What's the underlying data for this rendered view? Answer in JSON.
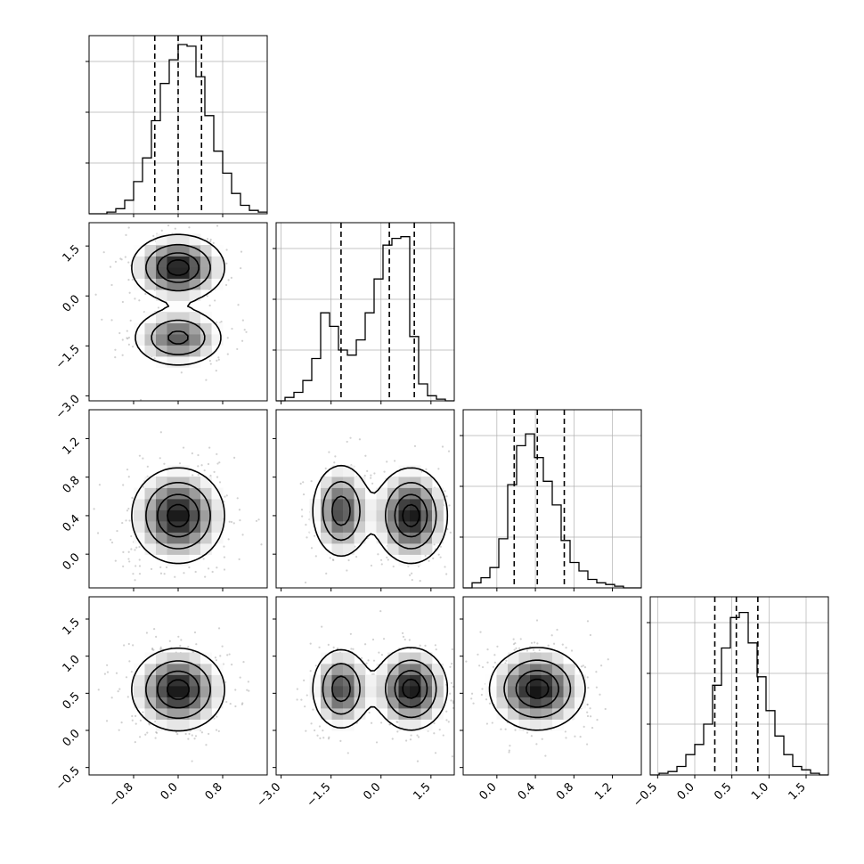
{
  "chart_data": {
    "type": "corner",
    "title": "",
    "variables": [
      {
        "key": "p0",
        "range": [
          -1.6,
          1.6
        ],
        "ticks": [
          -0.8,
          0.0,
          0.8
        ],
        "tick_labels": [
          "−0.8",
          "0.0",
          "0.8"
        ],
        "hist_x_ticks": [],
        "quantiles": [
          -0.42,
          0.0,
          0.42
        ],
        "hist": {
          "edges_start": -1.6,
          "bin_width": 0.16,
          "counts": [
            0.0,
            0.0,
            0.01,
            0.03,
            0.08,
            0.19,
            0.33,
            0.55,
            0.77,
            0.91,
            1.0,
            0.99,
            0.81,
            0.58,
            0.37,
            0.24,
            0.12,
            0.05,
            0.02,
            0.01
          ]
        },
        "hist_yticks": [
          0.3,
          0.6,
          0.9
        ]
      },
      {
        "key": "p1",
        "range": [
          -3.15,
          2.2
        ],
        "ticks": [
          -3.0,
          -1.5,
          0.0,
          1.5
        ],
        "tick_labels": [
          "−3.0",
          "−1.5",
          "0.0",
          "1.5"
        ],
        "quantiles": [
          -1.2,
          0.25,
          1.0
        ],
        "hist": {
          "edges_start": -3.15,
          "bin_width": 0.2675,
          "counts": [
            0.0,
            0.02,
            0.05,
            0.12,
            0.25,
            0.52,
            0.44,
            0.3,
            0.27,
            0.36,
            0.52,
            0.72,
            0.92,
            0.96,
            0.97,
            0.38,
            0.1,
            0.03,
            0.01,
            0.0
          ]
        },
        "hist_yticks": [
          0.3,
          0.6,
          0.9
        ]
      },
      {
        "key": "p2",
        "range": [
          -0.35,
          1.5
        ],
        "ticks": [
          0.0,
          0.4,
          0.8,
          1.2
        ],
        "tick_labels": [
          "0.0",
          "0.4",
          "0.8",
          "1.2"
        ],
        "quantiles": [
          0.18,
          0.42,
          0.7
        ],
        "hist": {
          "edges_start": -0.35,
          "bin_width": 0.0925,
          "counts": [
            0.0,
            0.03,
            0.06,
            0.12,
            0.29,
            0.61,
            0.84,
            0.91,
            0.77,
            0.63,
            0.49,
            0.28,
            0.15,
            0.1,
            0.05,
            0.03,
            0.02,
            0.01,
            0.0,
            0.0
          ]
        },
        "hist_yticks": [
          0.3,
          0.6,
          0.9
        ]
      },
      {
        "key": "p3",
        "range": [
          -0.6,
          1.8
        ],
        "ticks": [
          -0.5,
          0.0,
          0.5,
          1.0,
          1.5
        ],
        "tick_labels": [
          "−0.5",
          "0.0",
          "0.5",
          "1.0",
          "1.5"
        ],
        "quantiles": [
          0.27,
          0.56,
          0.85
        ],
        "hist": {
          "edges_start": -0.6,
          "bin_width": 0.12,
          "counts": [
            0.0,
            0.01,
            0.02,
            0.05,
            0.12,
            0.18,
            0.3,
            0.53,
            0.75,
            0.93,
            0.96,
            0.78,
            0.58,
            0.38,
            0.23,
            0.12,
            0.05,
            0.03,
            0.01,
            0.0
          ]
        },
        "hist_yticks": [
          0.3,
          0.6,
          0.9
        ]
      }
    ],
    "pairs": [
      {
        "x": "p0",
        "y": "p1",
        "modes": [
          {
            "cx": 0.0,
            "cy": 0.85,
            "sx": 0.42,
            "sy": 0.5,
            "w": 0.6
          },
          {
            "cx": 0.0,
            "cy": -1.25,
            "sx": 0.42,
            "sy": 0.45,
            "w": 0.4
          }
        ]
      },
      {
        "x": "p0",
        "y": "p2",
        "modes": [
          {
            "cx": 0.0,
            "cy": 0.4,
            "sx": 0.42,
            "sy": 0.25,
            "w": 1.0
          }
        ]
      },
      {
        "x": "p1",
        "y": "p2",
        "modes": [
          {
            "cx": 0.9,
            "cy": 0.4,
            "sx": 0.55,
            "sy": 0.25,
            "w": 0.6
          },
          {
            "cx": -1.2,
            "cy": 0.45,
            "sx": 0.45,
            "sy": 0.25,
            "w": 0.4
          }
        ]
      },
      {
        "x": "p0",
        "y": "p3",
        "modes": [
          {
            "cx": 0.0,
            "cy": 0.55,
            "sx": 0.42,
            "sy": 0.28,
            "w": 1.0
          }
        ]
      },
      {
        "x": "p1",
        "y": "p3",
        "modes": [
          {
            "cx": 0.9,
            "cy": 0.56,
            "sx": 0.55,
            "sy": 0.28,
            "w": 0.6
          },
          {
            "cx": -1.2,
            "cy": 0.56,
            "sx": 0.45,
            "sy": 0.28,
            "w": 0.4
          }
        ]
      },
      {
        "x": "p2",
        "y": "p3",
        "modes": [
          {
            "cx": 0.42,
            "cy": 0.56,
            "sx": 0.25,
            "sy": 0.28,
            "w": 1.0
          }
        ]
      }
    ],
    "grid": true,
    "quantile_lines": "dashed"
  }
}
